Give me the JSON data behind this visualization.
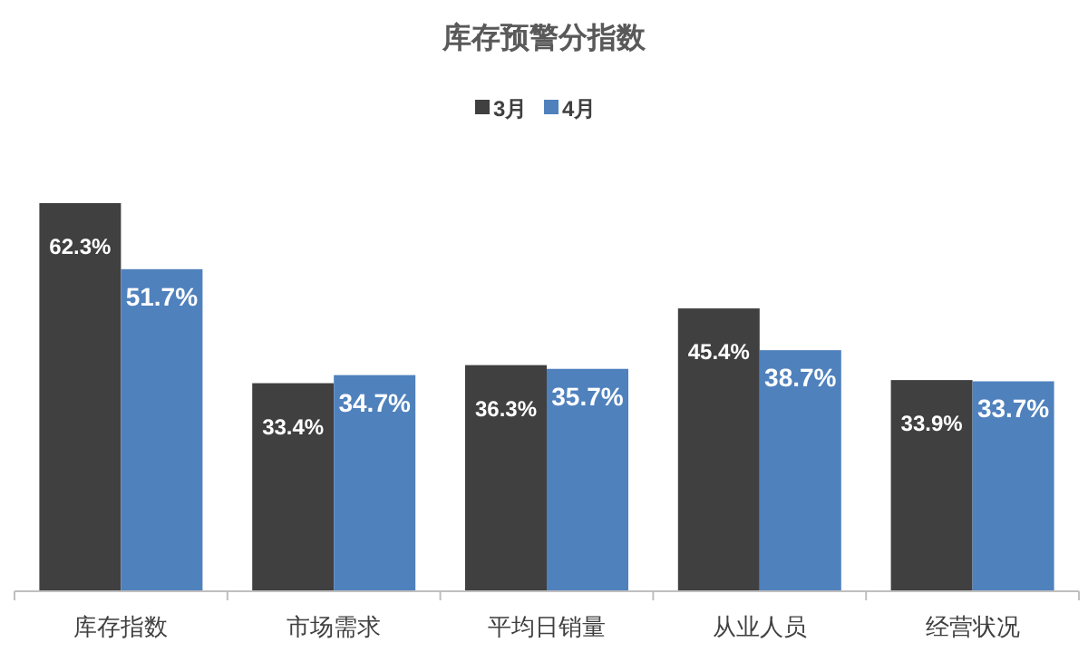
{
  "chart_data": {
    "type": "bar",
    "title": "库存预警分指数",
    "categories": [
      "库存指数",
      "市场需求",
      "平均日销量",
      "从业人员",
      "经营状况"
    ],
    "series": [
      {
        "name": "3月",
        "color": "#404040",
        "values": [
          62.3,
          33.4,
          36.3,
          45.4,
          33.9
        ],
        "value_labels": [
          "62.3%",
          "33.4%",
          "36.3%",
          "45.4%",
          "33.9%"
        ]
      },
      {
        "name": "4月",
        "color": "#4f81bd",
        "values": [
          51.7,
          34.7,
          35.7,
          38.7,
          33.7
        ],
        "value_labels": [
          "51.7%",
          "34.7%",
          "35.7%",
          "38.7%",
          "33.7%"
        ]
      }
    ],
    "legend": "top"
  }
}
